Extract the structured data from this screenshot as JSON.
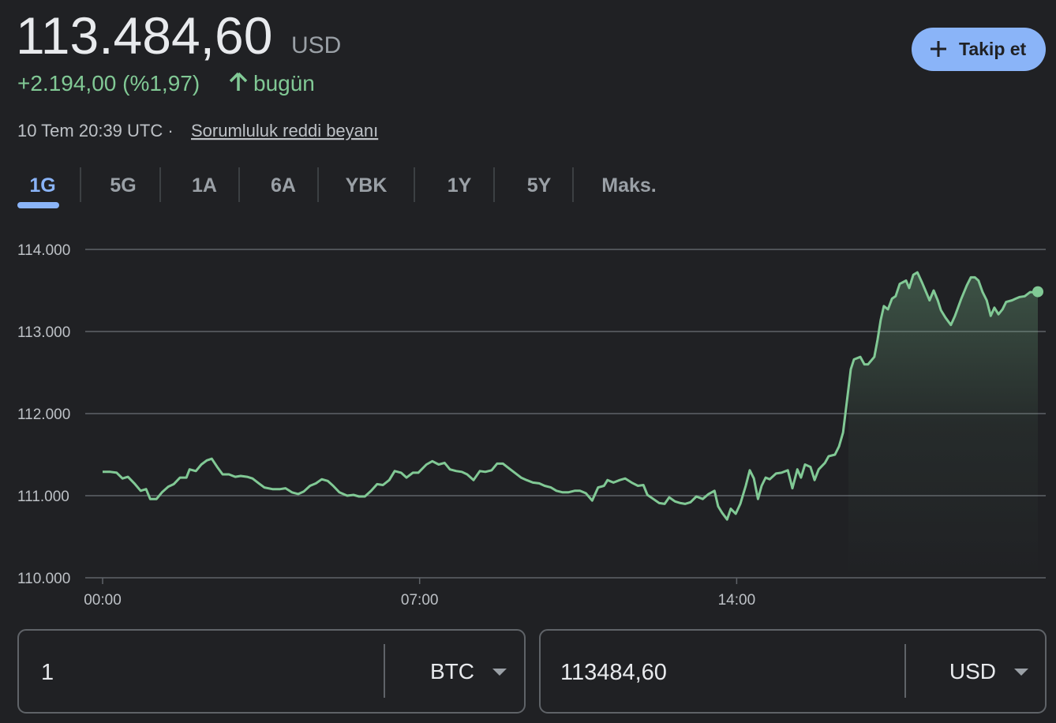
{
  "header": {
    "price": "113.484,60",
    "currency": "USD",
    "change": "+2.194,00 (%1,97)",
    "period": "bugün",
    "timestamp": "10 Tem 20:39 UTC ·",
    "disclaimer": "Sorumluluk reddi beyanı",
    "follow_button": "Takip et"
  },
  "tabs": [
    "1G",
    "5G",
    "1A",
    "6A",
    "YBK",
    "1Y",
    "5Y",
    "Maks."
  ],
  "chart_data": {
    "type": "line",
    "x": [
      0.0,
      0.17,
      0.31,
      0.44,
      0.56,
      0.7,
      0.84,
      0.96,
      1.05,
      1.19,
      1.31,
      1.45,
      1.57,
      1.71,
      1.85,
      1.92,
      2.06,
      2.18,
      2.3,
      2.41,
      2.53,
      2.65,
      2.79,
      2.93,
      3.05,
      3.19,
      3.31,
      3.45,
      3.57,
      3.75,
      3.92,
      4.04,
      4.18,
      4.32,
      4.44,
      4.58,
      4.71,
      4.84,
      4.97,
      5.09,
      5.23,
      5.4,
      5.54,
      5.66,
      5.79,
      5.93,
      6.06,
      6.19,
      6.33,
      6.45,
      6.59,
      6.71,
      6.85,
      6.97,
      7.15,
      7.28,
      7.42,
      7.55,
      7.67,
      7.81,
      7.93,
      8.05,
      8.19,
      8.33,
      8.45,
      8.59,
      8.71,
      8.84,
      8.98,
      9.1,
      9.24,
      9.36,
      9.5,
      9.64,
      9.76,
      9.9,
      10.02,
      10.16,
      10.28,
      10.42,
      10.54,
      10.67,
      10.81,
      10.94,
      11.07,
      11.15,
      11.28,
      11.42,
      11.54,
      11.68,
      11.82,
      11.94,
      12.03,
      12.16,
      12.29,
      12.41,
      12.51,
      12.64,
      12.76,
      12.86,
      12.98,
      13.11,
      13.25,
      13.38,
      13.51,
      13.59,
      13.68,
      13.79,
      13.87,
      13.98,
      14.08,
      14.2,
      14.29,
      14.38,
      14.47,
      14.55,
      14.64,
      14.73,
      14.87,
      14.99,
      15.13,
      15.23,
      15.34,
      15.42,
      15.51,
      15.63,
      15.72,
      15.81,
      15.95,
      16.03,
      16.17,
      16.26,
      16.35,
      16.43,
      16.52,
      16.59,
      16.73,
      16.82,
      16.9,
      17.04,
      17.11,
      17.18,
      17.25,
      17.34,
      17.43,
      17.51,
      17.6,
      17.74,
      17.81,
      17.9,
      17.99,
      18.09,
      18.16,
      18.26,
      18.35,
      18.44,
      18.51,
      18.61,
      18.73,
      18.82,
      18.96,
      19.08,
      19.17,
      19.26,
      19.34,
      19.43,
      19.52,
      19.61,
      19.69,
      19.78,
      19.87,
      19.95,
      20.08,
      20.16,
      20.25,
      20.36,
      20.48,
      20.56,
      20.65
    ],
    "series": [
      {
        "color": "#81c995",
        "values": [
          111290,
          111290,
          111280,
          111210,
          111230,
          111150,
          111060,
          111080,
          110960,
          110960,
          111040,
          111110,
          111140,
          111220,
          111220,
          111320,
          111300,
          111380,
          111430,
          111450,
          111350,
          111260,
          111260,
          111230,
          111240,
          111230,
          111210,
          111150,
          111100,
          111080,
          111080,
          111090,
          111040,
          111020,
          111050,
          111120,
          111150,
          111200,
          111180,
          111120,
          111040,
          111000,
          111010,
          110990,
          110990,
          111060,
          111140,
          111130,
          111190,
          111300,
          111280,
          111220,
          111280,
          111280,
          111380,
          111420,
          111380,
          111400,
          111320,
          111300,
          111290,
          111260,
          111190,
          111300,
          111290,
          111310,
          111390,
          111390,
          111330,
          111280,
          111220,
          111190,
          111160,
          111150,
          111120,
          111100,
          111060,
          111040,
          111040,
          111060,
          111060,
          111030,
          110940,
          111100,
          111120,
          111190,
          111160,
          111190,
          111210,
          111160,
          111120,
          111130,
          111010,
          110960,
          110910,
          110900,
          110980,
          110930,
          110910,
          110900,
          110920,
          110990,
          110960,
          111020,
          111060,
          110870,
          110790,
          110710,
          110840,
          110780,
          110900,
          111120,
          111310,
          111210,
          110960,
          111120,
          111220,
          111200,
          111270,
          111280,
          111310,
          111090,
          111320,
          111220,
          111380,
          111350,
          111190,
          111320,
          111400,
          111480,
          111500,
          111600,
          111770,
          112130,
          112540,
          112660,
          112690,
          112600,
          112600,
          112690,
          112900,
          113140,
          113310,
          113270,
          113400,
          113430,
          113580,
          113620,
          113530,
          113690,
          113720,
          113600,
          113510,
          113380,
          113500,
          113380,
          113260,
          113170,
          113080,
          113190,
          113400,
          113560,
          113660,
          113660,
          113620,
          113480,
          113380,
          113190,
          113290,
          113210,
          113270,
          113360,
          113380,
          113400,
          113420,
          113430,
          113480,
          113480,
          113484.6
        ]
      }
    ],
    "xlim": [
      0,
      20.65
    ],
    "xticks": [
      {
        "value": 0,
        "label": "00:00"
      },
      {
        "value": 7,
        "label": "07:00"
      },
      {
        "value": 14,
        "label": "14:00"
      }
    ],
    "ylim": [
      110000,
      114000
    ],
    "yticks": [
      {
        "value": 110000,
        "label": "110.000"
      },
      {
        "value": 111000,
        "label": "111.000"
      },
      {
        "value": 112000,
        "label": "112.000"
      },
      {
        "value": 113000,
        "label": "113.000"
      },
      {
        "value": 114000,
        "label": "114.000"
      }
    ],
    "grid": true
  },
  "converter": {
    "from_amount": "1",
    "from_currency": "BTC",
    "to_amount": "113484,60",
    "to_currency": "USD"
  }
}
